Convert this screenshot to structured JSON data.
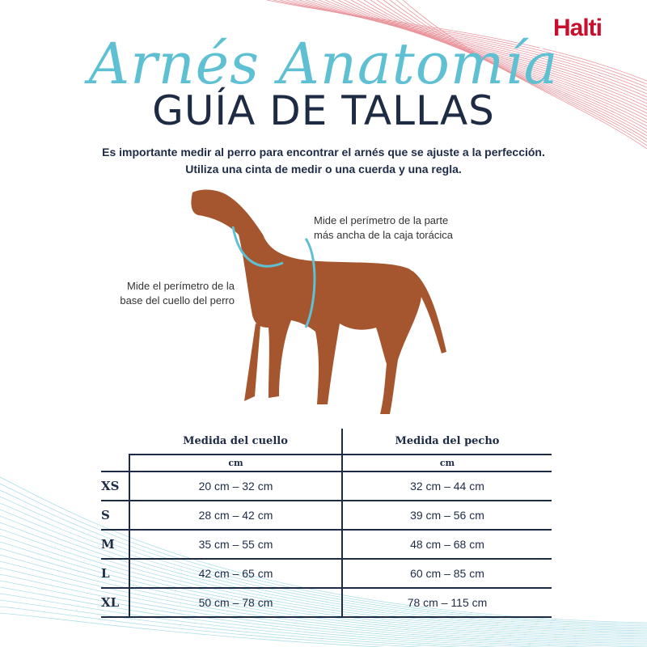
{
  "brand": {
    "logo": "Halti",
    "accent": "#c8102e",
    "teal": "#5fc0d3",
    "navy": "#1d2b45"
  },
  "header": {
    "script_title": "Arnés Anatomía",
    "title": "GUÍA DE TALLAS"
  },
  "intro": {
    "line1": "Es importante medir al perro para encontrar el arnés que se ajuste a la perfección.",
    "line2": "Utiliza una cinta de medir o una cuerda y una regla."
  },
  "annotations": {
    "chest_line1": "Mide el perímetro de la parte",
    "chest_line2": "más ancha de la caja torácica",
    "neck_line1": "Mide el perímetro de la",
    "neck_line2": "base del cuello del perro"
  },
  "table": {
    "headers": [
      "Medida del cuello",
      "Medida del pecho"
    ],
    "units": [
      "cm",
      "cm"
    ],
    "rows": [
      {
        "size": "XS",
        "neck": "20 cm – 32 cm",
        "chest": "32 cm – 44 cm"
      },
      {
        "size": "S",
        "neck": "28 cm – 42 cm",
        "chest": "39 cm – 56 cm"
      },
      {
        "size": "M",
        "neck": "35 cm – 55 cm",
        "chest": "48 cm – 68 cm"
      },
      {
        "size": "L",
        "neck": "42 cm – 65 cm",
        "chest": "60 cm – 85 cm"
      },
      {
        "size": "XL",
        "neck": "50 cm – 78 cm",
        "chest": "78 cm – 115 cm"
      }
    ]
  }
}
